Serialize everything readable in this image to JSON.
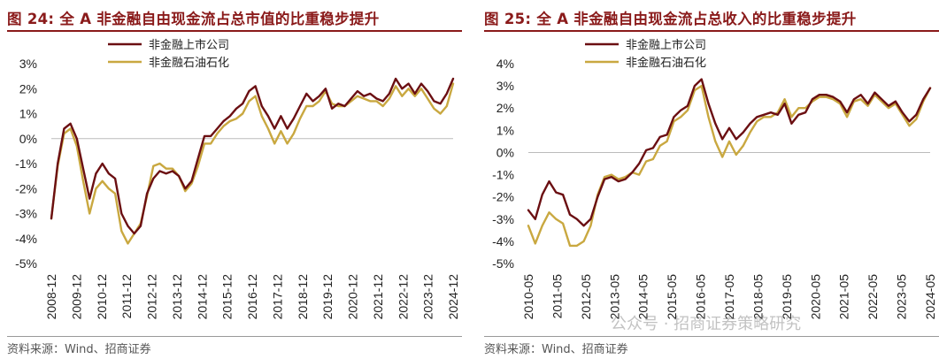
{
  "chart_data": [
    {
      "type": "line",
      "title": "图 24: 全 A 非金融自由现金流占总市值的比重稳步提升",
      "source": "资料来源：Wind、招商证券",
      "ylim": [
        -5,
        3
      ],
      "yticks": [
        "3%",
        "2%",
        "1%",
        "0%",
        "-1%",
        "-2%",
        "-3%",
        "-4%",
        "-5%"
      ],
      "xticks": [
        "2008-12",
        "2009-12",
        "2010-12",
        "2011-12",
        "2012-12",
        "2013-12",
        "2014-12",
        "2015-12",
        "2016-12",
        "2017-12",
        "2018-12",
        "2019-12",
        "2020-12",
        "2021-12",
        "2022-12",
        "2023-12",
        "2024-12"
      ],
      "xlim": [
        0,
        63
      ],
      "legend": [
        "非金融上市公司",
        "非金融石油石化"
      ],
      "colors": [
        "#6b0f12",
        "#c9a840"
      ],
      "series": [
        {
          "name": "非金融上市公司",
          "x": [
            0,
            1,
            2,
            3,
            4,
            5,
            6,
            7,
            8,
            9,
            10,
            11,
            12,
            13,
            14,
            15,
            16,
            17,
            18,
            19,
            20,
            21,
            22,
            23,
            24,
            25,
            26,
            27,
            28,
            29,
            30,
            31,
            32,
            33,
            34,
            35,
            36,
            37,
            38,
            39,
            40,
            41,
            42,
            43,
            44,
            45,
            46,
            47,
            48,
            49,
            50,
            51,
            52,
            53,
            54,
            55,
            56,
            57,
            58,
            59,
            60,
            61,
            62,
            63
          ],
          "values": [
            -3.2,
            -1.0,
            0.4,
            0.6,
            0.0,
            -1.2,
            -2.4,
            -1.4,
            -1.0,
            -1.4,
            -1.6,
            -3.0,
            -3.5,
            -3.8,
            -3.5,
            -2.2,
            -1.6,
            -1.3,
            -1.4,
            -1.3,
            -1.5,
            -2.0,
            -1.7,
            -0.8,
            0.1,
            0.1,
            0.4,
            0.7,
            0.9,
            1.2,
            1.4,
            1.9,
            2.1,
            1.3,
            0.9,
            0.4,
            0.9,
            0.4,
            0.8,
            1.3,
            1.8,
            1.5,
            1.7,
            2.0,
            1.2,
            1.4,
            1.3,
            1.6,
            1.9,
            1.7,
            1.8,
            1.6,
            1.5,
            1.8,
            2.4,
            2.0,
            2.2,
            1.8,
            2.2,
            1.9,
            1.5,
            1.4,
            1.8,
            2.4
          ]
        },
        {
          "name": "非金融石油石化",
          "x": [
            0,
            1,
            2,
            3,
            4,
            5,
            6,
            7,
            8,
            9,
            10,
            11,
            12,
            13,
            14,
            15,
            16,
            17,
            18,
            19,
            20,
            21,
            22,
            23,
            24,
            25,
            26,
            27,
            28,
            29,
            30,
            31,
            32,
            33,
            34,
            35,
            36,
            37,
            38,
            39,
            40,
            41,
            42,
            43,
            44,
            45,
            46,
            47,
            48,
            49,
            50,
            51,
            52,
            53,
            54,
            55,
            56,
            57,
            58,
            59,
            60,
            61,
            62,
            63
          ],
          "values": [
            -3.2,
            -1.1,
            0.2,
            0.4,
            -0.3,
            -1.7,
            -3.0,
            -2.0,
            -1.7,
            -2.0,
            -2.2,
            -3.7,
            -4.2,
            -3.8,
            -3.4,
            -2.3,
            -1.1,
            -1.0,
            -1.2,
            -1.2,
            -1.5,
            -2.1,
            -1.8,
            -1.1,
            -0.2,
            -0.2,
            0.2,
            0.5,
            0.7,
            0.8,
            1.0,
            1.5,
            1.7,
            0.9,
            0.4,
            -0.2,
            0.3,
            -0.2,
            0.2,
            0.8,
            1.3,
            1.3,
            1.5,
            1.9,
            1.4,
            1.3,
            1.3,
            1.5,
            1.7,
            1.6,
            1.5,
            1.5,
            1.3,
            1.6,
            2.1,
            1.7,
            2.0,
            1.7,
            2.0,
            1.6,
            1.2,
            1.0,
            1.3,
            2.2
          ]
        }
      ]
    },
    {
      "type": "line",
      "title": "图 25: 全 A 非金融自由现金流占总收入的比重稳步提升",
      "source": "资料来源：Wind、招商证券",
      "ylim": [
        -5,
        4
      ],
      "yticks": [
        "4%",
        "3%",
        "2%",
        "1%",
        "0%",
        "-1%",
        "-2%",
        "-3%",
        "-4%",
        "-5%"
      ],
      "xticks": [
        "2010-05",
        "2011-05",
        "2012-05",
        "2013-05",
        "2014-05",
        "2015-05",
        "2016-05",
        "2017-05",
        "2018-05",
        "2019-05",
        "2020-05",
        "2021-05",
        "2022-05",
        "2023-05",
        "2024-05"
      ],
      "xlim": [
        0,
        58
      ],
      "legend": [
        "非金融上市公司",
        "非金融石油石化"
      ],
      "colors": [
        "#6b0f12",
        "#c9a840"
      ],
      "series": [
        {
          "name": "非金融上市公司",
          "x": [
            0,
            1,
            2,
            3,
            4,
            5,
            6,
            7,
            8,
            9,
            10,
            11,
            12,
            13,
            14,
            15,
            16,
            17,
            18,
            19,
            20,
            21,
            22,
            23,
            24,
            25,
            26,
            27,
            28,
            29,
            30,
            31,
            32,
            33,
            34,
            35,
            36,
            37,
            38,
            39,
            40,
            41,
            42,
            43,
            44,
            45,
            46,
            47,
            48,
            49,
            50,
            51,
            52,
            53,
            54,
            55,
            56,
            57,
            58
          ],
          "values": [
            -2.6,
            -3.0,
            -1.9,
            -1.3,
            -1.8,
            -1.9,
            -2.8,
            -3.0,
            -3.3,
            -3.0,
            -2.0,
            -1.2,
            -1.1,
            -1.3,
            -1.2,
            -0.9,
            -0.5,
            0.1,
            0.2,
            0.7,
            0.8,
            1.6,
            1.9,
            2.1,
            3.0,
            3.3,
            2.2,
            1.3,
            0.6,
            1.1,
            0.6,
            0.9,
            1.3,
            1.6,
            1.7,
            1.8,
            1.7,
            2.2,
            1.3,
            1.7,
            1.8,
            2.4,
            2.6,
            2.6,
            2.5,
            2.3,
            1.8,
            2.4,
            2.6,
            2.2,
            2.7,
            2.4,
            2.1,
            2.3,
            1.8,
            1.4,
            1.7,
            2.4,
            2.9
          ]
        },
        {
          "name": "非金融石油石化",
          "x": [
            0,
            1,
            2,
            3,
            4,
            5,
            6,
            7,
            8,
            9,
            10,
            11,
            12,
            13,
            14,
            15,
            16,
            17,
            18,
            19,
            20,
            21,
            22,
            23,
            24,
            25,
            26,
            27,
            28,
            29,
            30,
            31,
            32,
            33,
            34,
            35,
            36,
            37,
            38,
            39,
            40,
            41,
            42,
            43,
            44,
            45,
            46,
            47,
            48,
            49,
            50,
            51,
            52,
            53,
            54,
            55,
            56,
            57,
            58
          ],
          "values": [
            -3.3,
            -4.1,
            -3.3,
            -2.7,
            -3.0,
            -3.2,
            -4.2,
            -4.2,
            -4.0,
            -3.3,
            -1.9,
            -1.1,
            -1.0,
            -1.2,
            -1.1,
            -0.9,
            -1.0,
            -0.4,
            -0.3,
            0.3,
            0.5,
            1.4,
            1.6,
            1.9,
            2.8,
            3.0,
            1.6,
            0.5,
            -0.2,
            0.5,
            -0.1,
            0.3,
            0.9,
            1.4,
            1.6,
            1.6,
            1.8,
            2.4,
            1.6,
            2.0,
            2.0,
            2.3,
            2.5,
            2.5,
            2.4,
            2.2,
            1.6,
            2.3,
            2.4,
            2.1,
            2.6,
            2.3,
            2.0,
            2.2,
            1.7,
            1.2,
            1.5,
            2.3,
            2.9
          ]
        }
      ]
    }
  ],
  "watermark": "公众号 · 招商证券策略研究"
}
